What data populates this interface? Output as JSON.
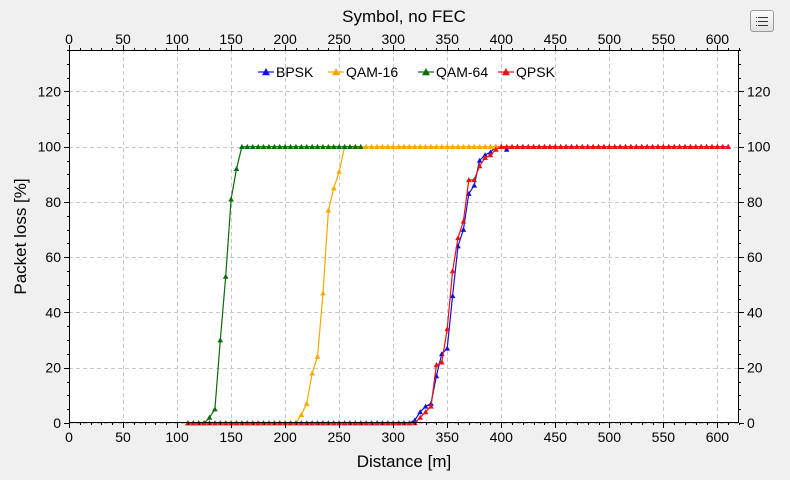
{
  "menu": {
    "icon": "hamburger-menu-icon"
  },
  "chart_data": {
    "type": "line",
    "title": "Symbol, no FEC",
    "xlabel": "Distance [m]",
    "ylabel": "Packet loss [%]",
    "xlim": [
      0,
      620
    ],
    "ylim": [
      0,
      135
    ],
    "xticks": [
      0,
      50,
      100,
      150,
      200,
      250,
      300,
      350,
      400,
      450,
      500,
      550,
      600
    ],
    "yticks": [
      0,
      20,
      40,
      60,
      80,
      100,
      120
    ],
    "grid": true,
    "legend": "top-center",
    "series": [
      {
        "name": "BPSK",
        "color": "#1010e0",
        "x": [
          110,
          115,
          120,
          125,
          130,
          135,
          140,
          145,
          150,
          155,
          160,
          165,
          170,
          175,
          180,
          185,
          190,
          195,
          200,
          205,
          210,
          215,
          220,
          225,
          230,
          235,
          240,
          245,
          250,
          255,
          260,
          265,
          270,
          275,
          280,
          285,
          290,
          295,
          300,
          305,
          310,
          315,
          320,
          325,
          330,
          335,
          340,
          345,
          350,
          355,
          360,
          365,
          370,
          375,
          380,
          385,
          390,
          395,
          400,
          405,
          410,
          415,
          420,
          425,
          430,
          435,
          440,
          445,
          450,
          455,
          460,
          465,
          470,
          475,
          480,
          485,
          490,
          495,
          500,
          505,
          510,
          515,
          520,
          525,
          530,
          535,
          540,
          545,
          550,
          555,
          560,
          565,
          570,
          575,
          580,
          585,
          590,
          595,
          600,
          605,
          610
        ],
        "y": [
          0,
          0,
          0,
          0,
          0,
          0,
          0,
          0,
          0,
          0,
          0,
          0,
          0,
          0,
          0,
          0,
          0,
          0,
          0,
          0,
          0,
          0,
          0,
          0,
          0,
          0,
          0,
          0,
          0,
          0,
          0,
          0,
          0,
          0,
          0,
          0,
          0,
          0,
          0,
          0,
          0,
          0,
          1,
          4,
          6,
          7,
          17,
          25,
          27,
          46,
          64,
          70,
          83,
          86,
          95,
          97,
          98,
          100,
          100,
          99,
          100,
          100,
          100,
          100,
          100,
          100,
          100,
          100,
          100,
          100,
          100,
          100,
          100,
          100,
          100,
          100,
          100,
          100,
          100,
          100,
          100,
          100,
          100,
          100,
          100,
          100,
          100,
          100,
          100,
          100,
          100,
          100,
          100,
          100,
          100,
          100,
          100,
          100,
          100,
          100,
          100
        ]
      },
      {
        "name": "QAM-16",
        "color": "#f5a800",
        "x": [
          110,
          115,
          120,
          125,
          130,
          135,
          140,
          145,
          150,
          155,
          160,
          165,
          170,
          175,
          180,
          185,
          190,
          195,
          200,
          205,
          210,
          215,
          220,
          225,
          230,
          235,
          240,
          245,
          250,
          255,
          260,
          265,
          270,
          275,
          280,
          285,
          290,
          295,
          300,
          305,
          310,
          315,
          320,
          325,
          330,
          335,
          340,
          345,
          350,
          355,
          360,
          365,
          370,
          375,
          380,
          385,
          390,
          395,
          400,
          405,
          410
        ],
        "y": [
          0,
          0,
          0,
          0,
          0,
          0,
          0,
          0,
          0,
          0,
          0,
          0,
          0,
          0,
          0,
          0,
          0,
          0,
          0,
          0,
          0,
          3,
          7,
          18,
          24,
          47,
          77,
          85,
          91,
          100,
          100,
          100,
          100,
          100,
          100,
          100,
          100,
          100,
          100,
          100,
          100,
          100,
          100,
          100,
          100,
          100,
          100,
          100,
          100,
          100,
          100,
          100,
          100,
          100,
          100,
          100,
          100,
          100,
          100,
          100,
          100
        ]
      },
      {
        "name": "QAM-64",
        "color": "#0a6b0a",
        "x": [
          110,
          115,
          120,
          125,
          130,
          135,
          140,
          145,
          150,
          155,
          160,
          165,
          170,
          175,
          180,
          185,
          190,
          195,
          200,
          205,
          210,
          215,
          220,
          225,
          230,
          235,
          240,
          245,
          250,
          255,
          260,
          265,
          270
        ],
        "y": [
          0,
          0,
          0,
          0,
          2,
          5,
          30,
          53,
          81,
          92,
          100,
          100,
          100,
          100,
          100,
          100,
          100,
          100,
          100,
          100,
          100,
          100,
          100,
          100,
          100,
          100,
          100,
          100,
          100,
          100,
          100,
          100,
          100
        ]
      },
      {
        "name": "QPSK",
        "color": "#ee1010",
        "x": [
          110,
          115,
          120,
          125,
          130,
          135,
          140,
          145,
          150,
          155,
          160,
          165,
          170,
          175,
          180,
          185,
          190,
          195,
          200,
          205,
          210,
          215,
          220,
          225,
          230,
          235,
          240,
          245,
          250,
          255,
          260,
          265,
          270,
          275,
          280,
          285,
          290,
          295,
          300,
          305,
          310,
          315,
          320,
          325,
          330,
          335,
          340,
          345,
          350,
          355,
          360,
          365,
          370,
          375,
          380,
          385,
          390,
          395,
          400,
          405,
          410,
          415,
          420,
          425,
          430,
          435,
          440,
          445,
          450,
          455,
          460,
          465,
          470,
          475,
          480,
          485,
          490,
          495,
          500,
          505,
          510,
          515,
          520,
          525,
          530,
          535,
          540,
          545,
          550,
          555,
          560,
          565,
          570,
          575,
          580,
          585,
          590,
          595,
          600,
          605,
          610
        ],
        "y": [
          0,
          0,
          0,
          0,
          0,
          0,
          0,
          0,
          0,
          0,
          0,
          0,
          0,
          0,
          0,
          0,
          0,
          0,
          0,
          0,
          0,
          0,
          0,
          0,
          0,
          0,
          0,
          0,
          0,
          0,
          0,
          0,
          0,
          0,
          0,
          0,
          0,
          0,
          0,
          0,
          0,
          0,
          0,
          2,
          4,
          6,
          21,
          22,
          34,
          55,
          67,
          73,
          88,
          88,
          93,
          96,
          97,
          99,
          100,
          100,
          100,
          100,
          100,
          100,
          100,
          100,
          100,
          100,
          100,
          100,
          100,
          100,
          100,
          100,
          100,
          100,
          100,
          100,
          100,
          100,
          100,
          100,
          100,
          100,
          100,
          100,
          100,
          100,
          100,
          100,
          100,
          100,
          100,
          100,
          100,
          100,
          100,
          100,
          100,
          100,
          100
        ]
      }
    ]
  }
}
